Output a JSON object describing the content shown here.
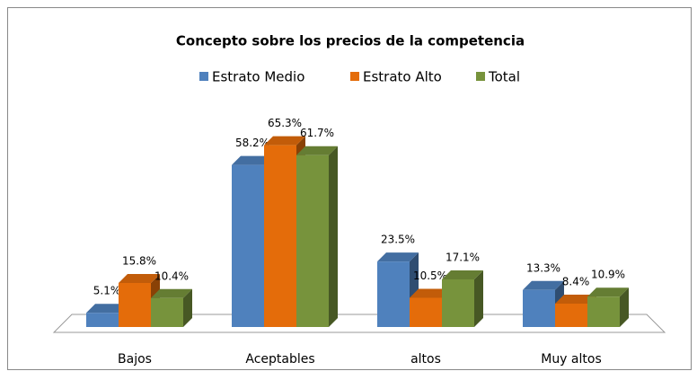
{
  "chart_data": {
    "type": "bar3d",
    "title": "Concepto  sobre  los precios de la competencia",
    "categories": [
      "Bajos",
      "Aceptables",
      "altos",
      "Muy altos"
    ],
    "series": [
      {
        "name": "Estrato Medio",
        "color": "#4f81bd",
        "values": [
          5.1,
          58.2,
          23.5,
          13.3
        ],
        "value_labels": [
          "5.1%",
          "58.2%",
          "23.5%",
          "13.3%"
        ]
      },
      {
        "name": "Estrato Alto",
        "color": "#e46c0a",
        "values": [
          15.8,
          65.3,
          10.5,
          8.4
        ],
        "value_labels": [
          "15.8%",
          "65.3%",
          "10.5%",
          "8.4%"
        ]
      },
      {
        "name": "Total",
        "color": "#77933c",
        "values": [
          10.4,
          61.7,
          17.1,
          10.9
        ],
        "value_labels": [
          "10.4%",
          "61.7%",
          "17.1%",
          "10.9%"
        ]
      }
    ],
    "legend": "top"
  }
}
